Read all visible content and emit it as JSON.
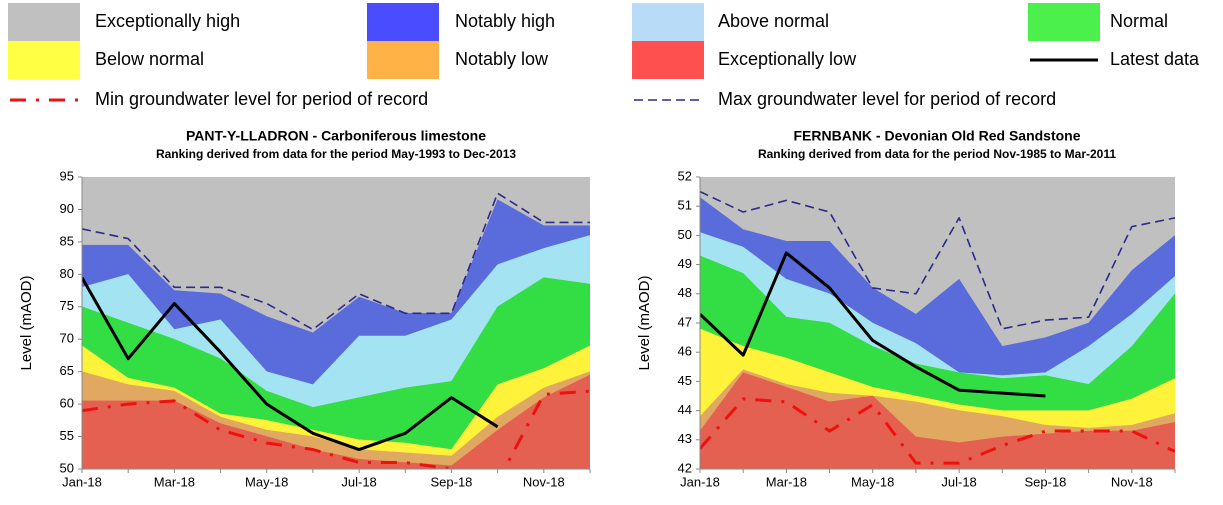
{
  "legend": [
    {
      "name": "Exceptionally high",
      "color": "#c0c0c0",
      "style": "swatch"
    },
    {
      "name": "Notably high",
      "color": "#4a4cff",
      "style": "swatch"
    },
    {
      "name": "Above normal",
      "color": "#b8dcf8",
      "style": "swatch"
    },
    {
      "name": "Normal",
      "color": "#4cf04c",
      "style": "swatch"
    },
    {
      "name": "Below normal",
      "color": "#ffff44",
      "style": "swatch"
    },
    {
      "name": "Notably low",
      "color": "#ffb347",
      "style": "swatch"
    },
    {
      "name": "Exceptionally low",
      "color": "#ff5050",
      "style": "swatch"
    },
    {
      "name": "Latest data",
      "color": "#000000",
      "style": "line"
    },
    {
      "name": "Min groundwater level for period of record",
      "color": "#ee1111",
      "style": "dashdot"
    },
    {
      "name": "Max groundwater level for period of record",
      "color": "#2a2a8a",
      "style": "dashed"
    }
  ],
  "chart_data": [
    {
      "type": "area",
      "title": "PANT-Y-LLADRON - Carboniferous limestone",
      "subtitle": "Ranking derived from data for the period May-1993 to Dec-2013",
      "ylabel": "Level (mAOD)",
      "plot_color": "#c0c0c0",
      "categories": [
        "Jan-18",
        null,
        "Mar-18",
        null,
        "May-18",
        null,
        "Jul-18",
        null,
        "Sep-18",
        null,
        "Nov-18",
        null
      ],
      "ylim": [
        50,
        95
      ],
      "yticks": [
        50,
        55,
        60,
        65,
        70,
        75,
        80,
        85,
        90,
        95
      ],
      "series": [
        {
          "name": "Notably high",
          "color": "#5a6bdc",
          "kind": "band",
          "values": [
            84.5,
            84.5,
            77.5,
            77,
            73.5,
            71,
            76.5,
            74,
            74,
            91.5,
            87.5,
            87.5
          ]
        },
        {
          "name": "Above normal",
          "color": "#a4e4f2",
          "kind": "band",
          "values": [
            78,
            80,
            71.5,
            73,
            65,
            63,
            70.5,
            70.5,
            73,
            81.5,
            84,
            86
          ]
        },
        {
          "name": "Normal",
          "color": "#33dd44",
          "kind": "band",
          "values": [
            75,
            72.5,
            70,
            67,
            62,
            59.5,
            61,
            62.5,
            63.5,
            75,
            79.5,
            78.5
          ]
        },
        {
          "name": "Below normal",
          "color": "#fff23a",
          "kind": "band",
          "values": [
            69,
            64,
            62.5,
            58.5,
            57.5,
            56,
            54.5,
            54,
            53,
            63,
            65.5,
            69
          ]
        },
        {
          "name": "Notably low",
          "color": "#e0a860",
          "kind": "band",
          "values": [
            65,
            63,
            62,
            58,
            56,
            55,
            53,
            52.5,
            52,
            58,
            62.5,
            65
          ]
        },
        {
          "name": "Exceptionally low",
          "color": "#e46050",
          "kind": "band",
          "values": [
            60.5,
            60.5,
            60.5,
            57,
            55,
            53,
            51.5,
            51,
            50.5,
            56,
            61,
            64.5
          ]
        },
        {
          "name": "Max groundwater level for period of record",
          "color": "#2a2a8a",
          "kind": "dashed",
          "values": [
            87,
            85.5,
            78,
            78,
            75.5,
            71.5,
            77,
            74,
            74,
            92.5,
            88,
            88
          ]
        },
        {
          "name": "Min groundwater level for period of record",
          "color": "#ee1111",
          "kind": "dashdot",
          "values": [
            59,
            60,
            60.5,
            56,
            54,
            53,
            51,
            51,
            50,
            48,
            61.5,
            62
          ]
        },
        {
          "name": "Latest data",
          "color": "#000000",
          "kind": "line",
          "values": [
            79.5,
            67,
            75.5,
            68,
            60,
            55.5,
            53,
            55.5,
            61,
            56.5,
            null,
            null
          ]
        }
      ]
    },
    {
      "type": "area",
      "title": "FERNBANK - Devonian Old Red Sandstone",
      "subtitle": "Ranking derived from data for the period Nov-1985 to Mar-2011",
      "ylabel": "Level (mAOD)",
      "plot_color": "#c0c0c0",
      "categories": [
        "Jan-18",
        null,
        "Mar-18",
        null,
        "May-18",
        null,
        "Jul-18",
        null,
        "Sep-18",
        null,
        "Nov-18",
        null
      ],
      "ylim": [
        42,
        52
      ],
      "yticks": [
        42,
        43,
        44,
        45,
        46,
        47,
        48,
        49,
        50,
        51,
        52
      ],
      "series": [
        {
          "name": "Notably high",
          "color": "#5a6bdc",
          "kind": "band",
          "values": [
            51.3,
            50.2,
            49.8,
            49.8,
            48.2,
            47.3,
            48.5,
            46.2,
            46.5,
            47,
            48.8,
            50
          ]
        },
        {
          "name": "Above normal",
          "color": "#a4e4f2",
          "kind": "band",
          "values": [
            50.1,
            49.6,
            48.5,
            48,
            47,
            46.3,
            45.3,
            45.2,
            45.3,
            46.2,
            47.3,
            48.6
          ]
        },
        {
          "name": "Normal",
          "color": "#33dd44",
          "kind": "band",
          "values": [
            49.3,
            48.7,
            47.2,
            47,
            46.2,
            45.6,
            45.3,
            45.1,
            45.2,
            44.9,
            46.2,
            48
          ]
        },
        {
          "name": "Below normal",
          "color": "#fff23a",
          "kind": "band",
          "values": [
            46.8,
            46.2,
            45.8,
            45.3,
            44.8,
            44.5,
            44.2,
            44,
            44,
            44,
            44.4,
            45.1
          ]
        },
        {
          "name": "Notably low",
          "color": "#e0a860",
          "kind": "band",
          "values": [
            43.8,
            45.4,
            44.9,
            44.6,
            44.5,
            44.3,
            44,
            43.8,
            43.5,
            43.4,
            43.5,
            43.9
          ]
        },
        {
          "name": "Exceptionally low",
          "color": "#e46050",
          "kind": "band",
          "values": [
            43.3,
            45.3,
            44.8,
            44.3,
            44.5,
            43.1,
            42.9,
            43.1,
            43.2,
            43.3,
            43.3,
            43.6
          ]
        },
        {
          "name": "Max groundwater level for period of record",
          "color": "#2a2a8a",
          "kind": "dashed",
          "values": [
            51.5,
            50.8,
            51.2,
            50.8,
            48.2,
            48,
            50.6,
            46.8,
            47.1,
            47.2,
            50.3,
            50.6
          ]
        },
        {
          "name": "Min groundwater level for period of record",
          "color": "#ee1111",
          "kind": "dashdot",
          "values": [
            42.7,
            44.4,
            44.3,
            43.3,
            44.2,
            42.2,
            42.2,
            42.8,
            43.3,
            43.3,
            43.3,
            42.6
          ]
        },
        {
          "name": "Latest data",
          "color": "#000000",
          "kind": "line",
          "values": [
            47.3,
            45.9,
            49.4,
            48.2,
            46.4,
            45.5,
            44.7,
            44.6,
            44.5,
            null,
            null,
            null
          ]
        }
      ]
    }
  ]
}
